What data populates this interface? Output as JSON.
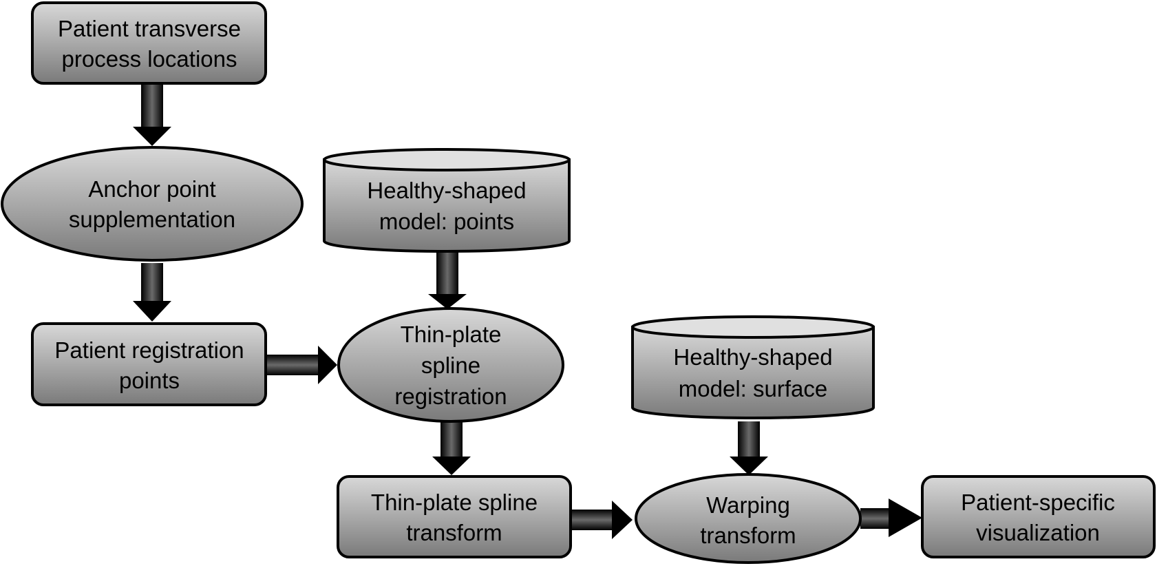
{
  "diagram": {
    "nodes": {
      "patient_tp": {
        "shape": "rounded-rectangle",
        "lines": [
          "Patient transverse",
          "process locations"
        ]
      },
      "anchor": {
        "shape": "ellipse",
        "lines": [
          "Anchor point",
          "supplementation"
        ]
      },
      "registration_points": {
        "shape": "rounded-rectangle",
        "lines": [
          "Patient registration",
          "points"
        ]
      },
      "model_points": {
        "shape": "cylinder",
        "lines": [
          "Healthy-shaped",
          "model: points"
        ]
      },
      "tps_registration": {
        "shape": "ellipse",
        "lines": [
          "Thin-plate",
          "spline",
          "registration"
        ]
      },
      "tps_transform": {
        "shape": "rounded-rectangle",
        "lines": [
          "Thin-plate spline",
          "transform"
        ]
      },
      "model_surface": {
        "shape": "cylinder",
        "lines": [
          "Healthy-shaped",
          "model: surface"
        ]
      },
      "warping": {
        "shape": "ellipse",
        "lines": [
          "Warping",
          "transform"
        ]
      },
      "visualization": {
        "shape": "rounded-rectangle",
        "lines": [
          "Patient-specific",
          "visualization"
        ]
      }
    },
    "edges": [
      {
        "from": "patient_tp",
        "to": "anchor"
      },
      {
        "from": "anchor",
        "to": "registration_points"
      },
      {
        "from": "registration_points",
        "to": "tps_registration"
      },
      {
        "from": "model_points",
        "to": "tps_registration"
      },
      {
        "from": "tps_registration",
        "to": "tps_transform"
      },
      {
        "from": "tps_transform",
        "to": "warping"
      },
      {
        "from": "model_surface",
        "to": "warping"
      },
      {
        "from": "warping",
        "to": "visualization"
      }
    ],
    "colors": {
      "fill_top": "#d8d8d8",
      "fill_bottom": "#7a7a7a",
      "cylinder_top": "#e0e0e0",
      "stroke": "#000000",
      "arrow": "#000000",
      "arrow_highlight": "#6a6a6a"
    }
  }
}
